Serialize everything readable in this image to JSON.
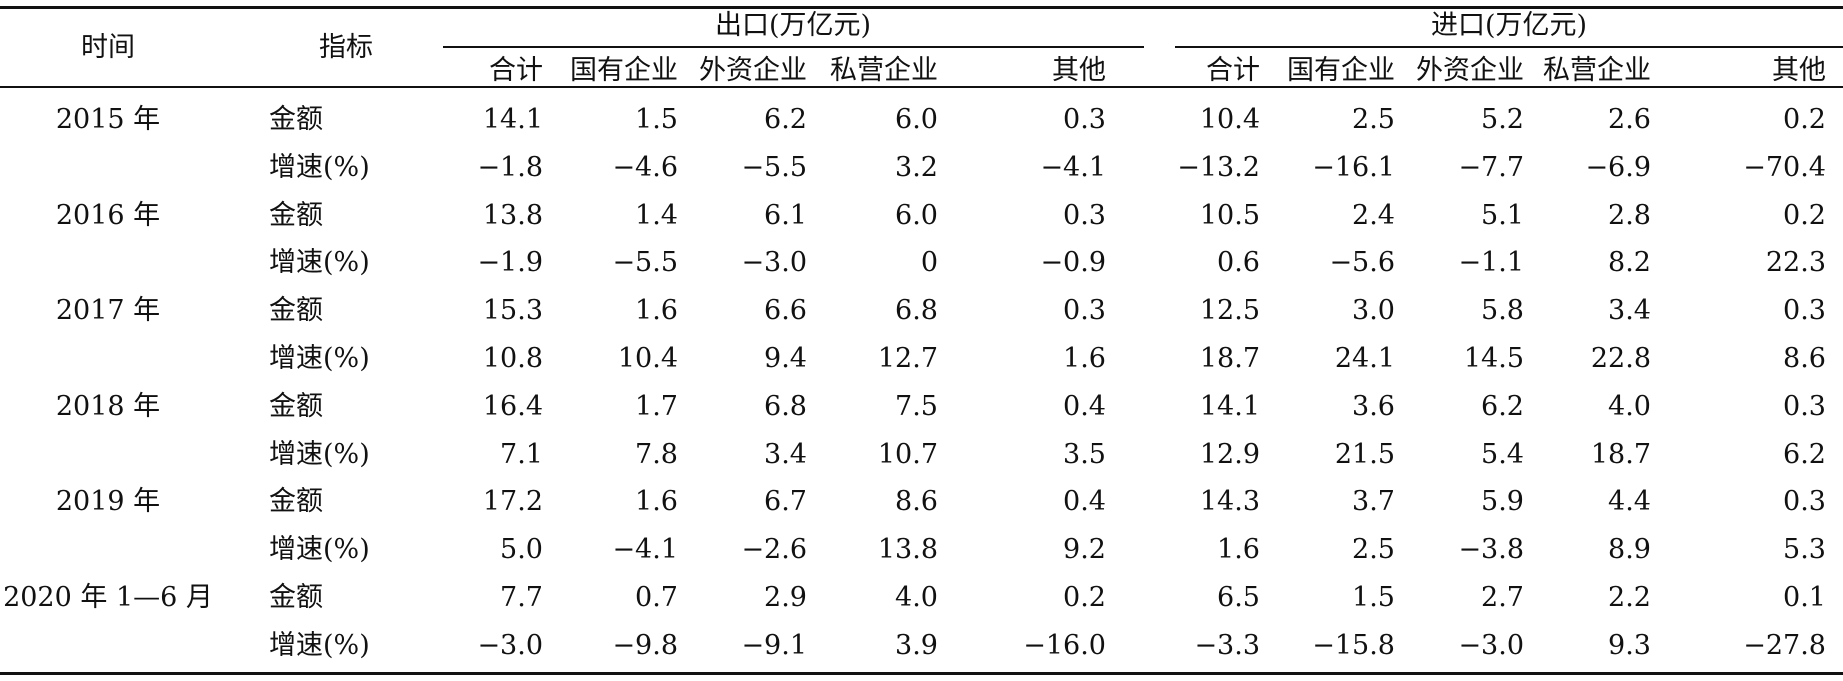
{
  "header": {
    "time_label": "时间",
    "indicator_label": "指标",
    "export_group": "出口(万亿元)",
    "import_group": "进口(万亿元)",
    "export_columns": [
      "合计",
      "国有企业",
      "外资企业",
      "私营企业",
      "其他"
    ],
    "import_columns": [
      "合计",
      "国有企业",
      "外资企业",
      "私营企业",
      "其他"
    ]
  },
  "rows": [
    {
      "time": "2015 年",
      "indicator": "金额",
      "values": [
        "14.1",
        "1.5",
        "6.2",
        "6.0",
        "0.3",
        "10.4",
        "2.5",
        "5.2",
        "2.6",
        "0.2"
      ]
    },
    {
      "time": "",
      "indicator": "增速(%)",
      "values": [
        "−1.8",
        "−4.6",
        "−5.5",
        "3.2",
        "−4.1",
        "−13.2",
        "−16.1",
        "−7.7",
        "−6.9",
        "−70.4"
      ]
    },
    {
      "time": "2016 年",
      "indicator": "金额",
      "values": [
        "13.8",
        "1.4",
        "6.1",
        "6.0",
        "0.3",
        "10.5",
        "2.4",
        "5.1",
        "2.8",
        "0.2"
      ]
    },
    {
      "time": "",
      "indicator": "增速(%)",
      "values": [
        "−1.9",
        "−5.5",
        "−3.0",
        "0",
        "−0.9",
        "0.6",
        "−5.6",
        "−1.1",
        "8.2",
        "22.3"
      ]
    },
    {
      "time": "2017 年",
      "indicator": "金额",
      "values": [
        "15.3",
        "1.6",
        "6.6",
        "6.8",
        "0.3",
        "12.5",
        "3.0",
        "5.8",
        "3.4",
        "0.3"
      ]
    },
    {
      "time": "",
      "indicator": "增速(%)",
      "values": [
        "10.8",
        "10.4",
        "9.4",
        "12.7",
        "1.6",
        "18.7",
        "24.1",
        "14.5",
        "22.8",
        "8.6"
      ]
    },
    {
      "time": "2018 年",
      "indicator": "金额",
      "values": [
        "16.4",
        "1.7",
        "6.8",
        "7.5",
        "0.4",
        "14.1",
        "3.6",
        "6.2",
        "4.0",
        "0.3"
      ]
    },
    {
      "time": "",
      "indicator": "增速(%)",
      "values": [
        "7.1",
        "7.8",
        "3.4",
        "10.7",
        "3.5",
        "12.9",
        "21.5",
        "5.4",
        "18.7",
        "6.2"
      ]
    },
    {
      "time": "2019 年",
      "indicator": "金额",
      "values": [
        "17.2",
        "1.6",
        "6.7",
        "8.6",
        "0.4",
        "14.3",
        "3.7",
        "5.9",
        "4.4",
        "0.3"
      ]
    },
    {
      "time": "",
      "indicator": "增速(%)",
      "values": [
        "5.0",
        "−4.1",
        "−2.6",
        "13.8",
        "9.2",
        "1.6",
        "2.5",
        "−3.8",
        "8.9",
        "5.3"
      ]
    },
    {
      "time": "2020 年 1—6 月",
      "indicator": "金额",
      "values": [
        "7.7",
        "0.7",
        "2.9",
        "4.0",
        "0.2",
        "6.5",
        "1.5",
        "2.7",
        "2.2",
        "0.1"
      ]
    },
    {
      "time": "",
      "indicator": "增速(%)",
      "values": [
        "−3.0",
        "−9.8",
        "−9.1",
        "3.9",
        "−16.0",
        "−3.3",
        "−15.8",
        "−3.0",
        "9.3",
        "−27.8"
      ]
    }
  ]
}
